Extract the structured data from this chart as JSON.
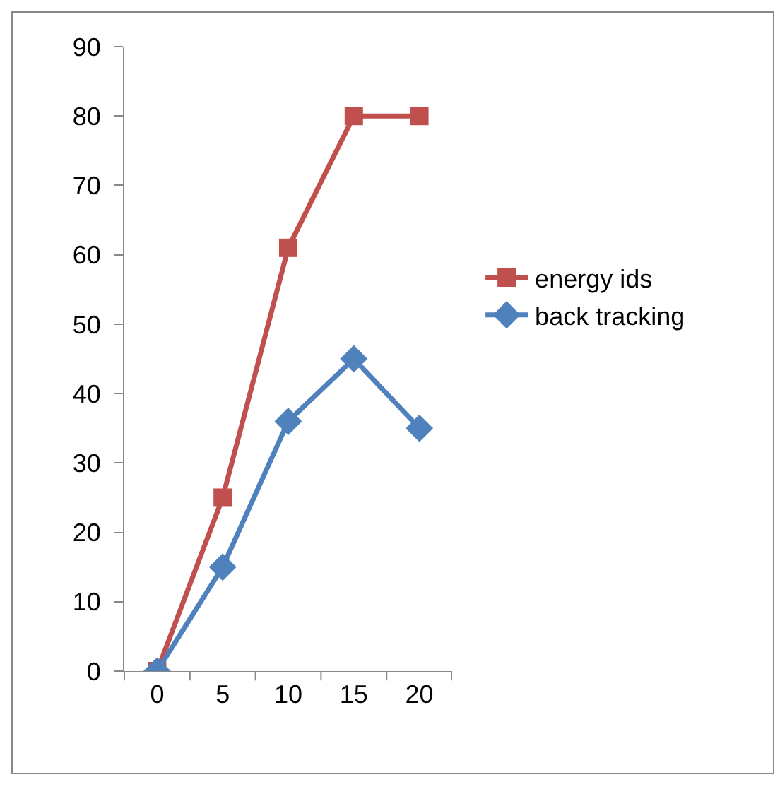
{
  "chart_data": {
    "type": "line",
    "categories": [
      "0",
      "5",
      "10",
      "15",
      "20"
    ],
    "series": [
      {
        "name": "energy ids",
        "color": "#c0504d",
        "marker": "square",
        "values": [
          0,
          25,
          61,
          80,
          80
        ]
      },
      {
        "name": "back tracking",
        "color": "#4f81bd",
        "marker": "diamond",
        "values": [
          0,
          15,
          36,
          45,
          35
        ]
      }
    ],
    "ylim": [
      0,
      90
    ],
    "yticks": [
      0,
      10,
      20,
      30,
      40,
      50,
      60,
      70,
      80,
      90
    ],
    "grid": false,
    "legend": "right",
    "line_style": "solid"
  }
}
